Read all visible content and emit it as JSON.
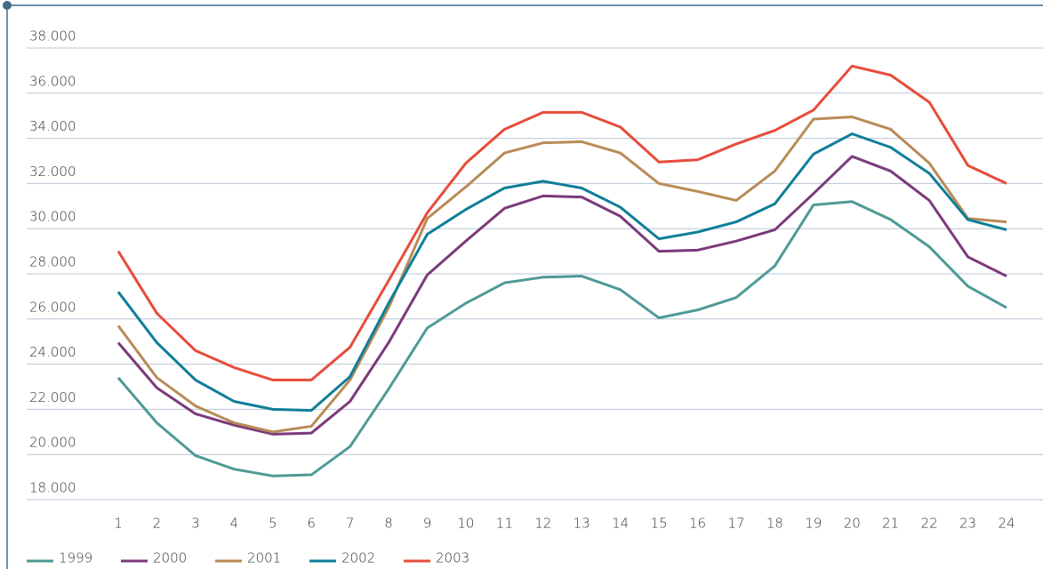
{
  "chart_data": {
    "type": "line",
    "categories": [
      "1",
      "2",
      "3",
      "4",
      "5",
      "6",
      "7",
      "8",
      "9",
      "10",
      "11",
      "12",
      "13",
      "14",
      "15",
      "16",
      "17",
      "18",
      "19",
      "20",
      "21",
      "22",
      "23",
      "24"
    ],
    "ylim": [
      17500,
      39000
    ],
    "yticks": [
      {
        "value": 18000,
        "label": "18.000"
      },
      {
        "value": 20000,
        "label": "20.000"
      },
      {
        "value": 22000,
        "label": "22.000"
      },
      {
        "value": 24000,
        "label": "24.000"
      },
      {
        "value": 26000,
        "label": "26.000"
      },
      {
        "value": 28000,
        "label": "28.000"
      },
      {
        "value": 30000,
        "label": "30.000"
      },
      {
        "value": 32000,
        "label": "32.000"
      },
      {
        "value": 34000,
        "label": "34.000"
      },
      {
        "value": 36000,
        "label": "36.000"
      },
      {
        "value": 38000,
        "label": "38.000"
      }
    ],
    "grid": true,
    "legend": "bottom",
    "series": [
      {
        "name": "1999",
        "color": "#4e9a96",
        "values": [
          23400,
          21400,
          19950,
          19350,
          19050,
          19100,
          20350,
          22900,
          25600,
          26700,
          27600,
          27850,
          27900,
          27300,
          26050,
          26400,
          26950,
          28350,
          31050,
          31200,
          30400,
          29200,
          27450,
          26500
        ]
      },
      {
        "name": "2000",
        "color": "#7b3a7b",
        "values": [
          24950,
          22950,
          21800,
          21300,
          20900,
          20950,
          22350,
          24950,
          27950,
          29450,
          30900,
          31450,
          31400,
          30550,
          29000,
          29050,
          29450,
          29950,
          31550,
          33200,
          32550,
          31250,
          28750,
          27900
        ]
      },
      {
        "name": "2001",
        "color": "#b98b57",
        "values": [
          25700,
          23400,
          22150,
          21400,
          21000,
          21250,
          23300,
          26500,
          30450,
          31850,
          33350,
          33800,
          33850,
          33350,
          32000,
          31650,
          31250,
          32550,
          34850,
          34950,
          34400,
          32900,
          30450,
          30300
        ]
      },
      {
        "name": "2002",
        "color": "#0f7e99",
        "values": [
          27200,
          24950,
          23300,
          22350,
          22000,
          21950,
          23450,
          26700,
          29750,
          30850,
          31800,
          32100,
          31800,
          30950,
          29550,
          29850,
          30300,
          31100,
          33300,
          34200,
          33600,
          32450,
          30400,
          29950
        ]
      },
      {
        "name": "2003",
        "color": "#e84c3b",
        "values": [
          29000,
          26250,
          24600,
          23850,
          23300,
          23300,
          24750,
          27700,
          30700,
          32900,
          34400,
          35150,
          35150,
          34500,
          32950,
          33050,
          33750,
          34350,
          35250,
          37200,
          36800,
          35600,
          32800,
          32000
        ]
      }
    ]
  }
}
